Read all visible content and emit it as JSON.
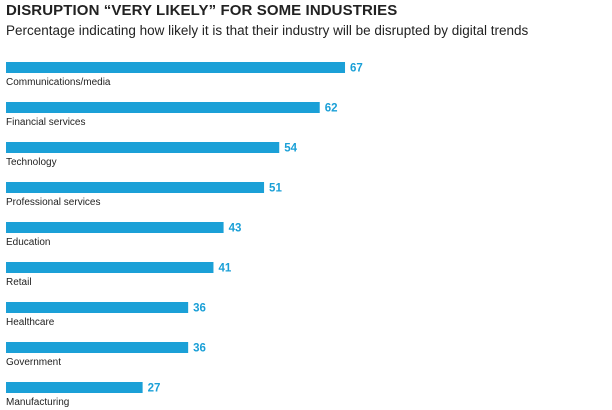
{
  "chart_data": {
    "type": "bar",
    "orientation": "horizontal",
    "title": "DISRUPTION “VERY LIKELY” FOR SOME INDUSTRIES",
    "subtitle": "Percentage indicating how likely it is that their industry will be disrupted by digital trends",
    "categories": [
      "Communications/media",
      "Financial services",
      "Technology",
      "Professional services",
      "Education",
      "Retail",
      "Healthcare",
      "Government",
      "Manufacturing"
    ],
    "values": [
      67,
      62,
      54,
      51,
      43,
      41,
      36,
      36,
      27
    ],
    "bar_color": "#1ba0d7",
    "value_color": "#1ba0d7",
    "grid": false,
    "legend": "none"
  }
}
